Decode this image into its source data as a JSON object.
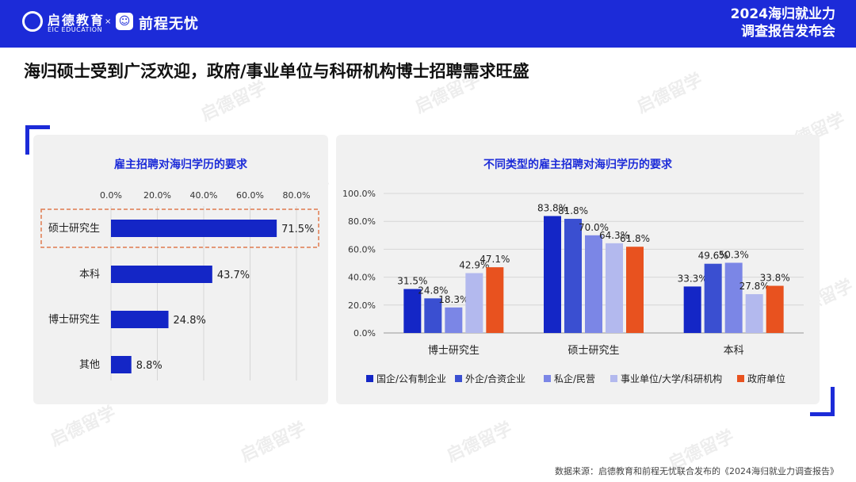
{
  "header": {
    "brand1": "启德教育",
    "brand1_sub": "EIC EDUCATION",
    "separator": "×",
    "brand2": "前程无忧",
    "report_title_line1": "2024海归就业力",
    "report_title_line2": "调查报告发布会"
  },
  "headline": "海归硕士受到广泛欢迎，政府/事业单位与科研机构博士招聘需求旺盛",
  "watermark_text": "启德留学",
  "footer": "数据来源：启德教育和前程无忧联合发布的《2024海归就业力调查报告》",
  "colors": {
    "brand_blue": "#1c2bd8",
    "highlight_border": "#e07b4f",
    "series": [
      "#1426c6",
      "#3a4fd1",
      "#7b86e6",
      "#b3b9ee",
      "#e8521f"
    ]
  },
  "chart_data": [
    {
      "type": "bar",
      "orientation": "horizontal",
      "title": "雇主招聘对海归学历的要求",
      "categories": [
        "硕士研究生",
        "本科",
        "博士研究生",
        "其他"
      ],
      "values": [
        71.5,
        43.7,
        24.8,
        8.8
      ],
      "value_labels": [
        "71.5%",
        "43.7%",
        "24.8%",
        "8.8%"
      ],
      "xlim": [
        0,
        80
      ],
      "ticks": [
        "0.0%",
        "20.0%",
        "40.0%",
        "60.0%",
        "80.0%"
      ],
      "highlight": "硕士研究生",
      "grid": true
    },
    {
      "type": "bar",
      "orientation": "vertical",
      "title": "不同类型的雇主招聘对海归学历的要求",
      "categories": [
        "博士研究生",
        "硕士研究生",
        "本科"
      ],
      "series": [
        {
          "name": "国企/公有制企业",
          "values": [
            31.5,
            83.8,
            33.3
          ]
        },
        {
          "name": "外企/合资企业",
          "values": [
            24.8,
            81.8,
            49.6
          ]
        },
        {
          "name": "私企/民营",
          "values": [
            18.3,
            70.0,
            50.3
          ]
        },
        {
          "name": "事业单位/大学/科研机构",
          "values": [
            42.9,
            64.3,
            27.8
          ]
        },
        {
          "name": "政府单位",
          "values": [
            47.1,
            61.8,
            33.8
          ]
        }
      ],
      "value_labels": [
        [
          "31.5%",
          "83.8%",
          "33.3%"
        ],
        [
          "24.8%",
          "81.8%",
          "49.6%"
        ],
        [
          "18.3%",
          "70.0%",
          "50.3%"
        ],
        [
          "42.9%",
          "64.3%",
          "27.8%"
        ],
        [
          "47.1%",
          "61.8%",
          "33.8%"
        ]
      ],
      "ylim": [
        0,
        100
      ],
      "ticks": [
        "0.0%",
        "20.0%",
        "40.0%",
        "60.0%",
        "80.0%",
        "100.0%"
      ],
      "legend_position": "bottom",
      "grid": true
    }
  ]
}
